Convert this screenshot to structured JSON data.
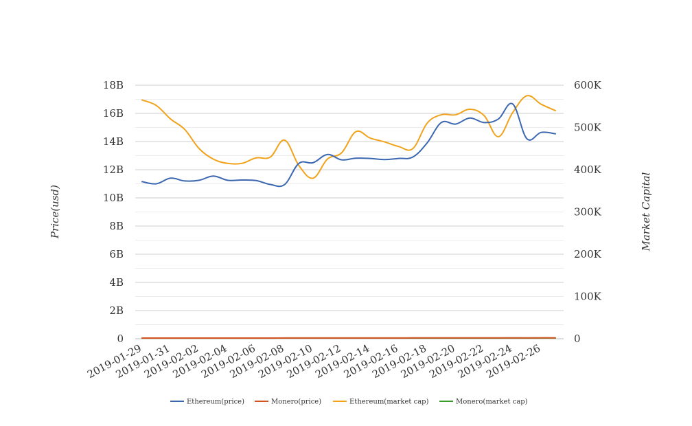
{
  "chart_data": {
    "type": "line",
    "title": "",
    "x": [
      "2019-01-29",
      "2019-01-30",
      "2019-01-31",
      "2019-02-01",
      "2019-02-02",
      "2019-02-03",
      "2019-02-04",
      "2019-02-05",
      "2019-02-06",
      "2019-02-07",
      "2019-02-08",
      "2019-02-09",
      "2019-02-10",
      "2019-02-11",
      "2019-02-12",
      "2019-02-13",
      "2019-02-14",
      "2019-02-15",
      "2019-02-16",
      "2019-02-17",
      "2019-02-18",
      "2019-02-19",
      "2019-02-20",
      "2019-02-21",
      "2019-02-22",
      "2019-02-23",
      "2019-02-24",
      "2019-02-25",
      "2019-02-26",
      "2019-02-27"
    ],
    "x_tick_labels": [
      "2019-01-29",
      "2019-01-31",
      "2019-02-02",
      "2019-02-04",
      "2019-02-06",
      "2019-02-08",
      "2019-02-10",
      "2019-02-12",
      "2019-02-14",
      "2019-02-16",
      "2019-02-18",
      "2019-02-20",
      "2019-02-22",
      "2019-02-24",
      "2019-02-26"
    ],
    "y_left": {
      "label": "Price(usd)",
      "ylim": [
        0,
        18000000000
      ],
      "ticks": [
        0,
        2000000000,
        4000000000,
        6000000000,
        8000000000,
        10000000000,
        12000000000,
        14000000000,
        16000000000,
        18000000000
      ],
      "tick_labels": [
        "0",
        "2B",
        "4B",
        "6B",
        "8B",
        "10B",
        "12B",
        "14B",
        "16B",
        "18B"
      ]
    },
    "y_right": {
      "label": "Market Capital",
      "ylim": [
        0,
        600000
      ],
      "ticks": [
        0,
        100000,
        200000,
        300000,
        400000,
        500000,
        600000
      ],
      "tick_labels": [
        "0",
        "100K",
        "200K",
        "300K",
        "400K",
        "500K",
        "600K"
      ]
    },
    "grid": true,
    "legend_position": "bottom",
    "series": [
      {
        "name": "Ethereum(price)",
        "axis": "left",
        "color": "#3a67b0",
        "values": [
          11150000000,
          11000000000,
          11400000000,
          11200000000,
          11250000000,
          11550000000,
          11250000000,
          11270000000,
          11230000000,
          10950000000,
          10950000000,
          12450000000,
          12500000000,
          13080000000,
          12700000000,
          12820000000,
          12800000000,
          12720000000,
          12800000000,
          12900000000,
          13900000000,
          15350000000,
          15240000000,
          15670000000,
          15350000000,
          15600000000,
          16670000000,
          14200000000,
          14650000000,
          14550000000
        ]
      },
      {
        "name": "Monero(price)",
        "axis": "left",
        "color": "#d4521f",
        "values": [
          50000000,
          48000000,
          47000000,
          47000000,
          48000000,
          49000000,
          48000000,
          49000000,
          50000000,
          51000000,
          52000000,
          53000000,
          54000000,
          55000000,
          56000000,
          57000000,
          57000000,
          56000000,
          57000000,
          58000000,
          59000000,
          60000000,
          61000000,
          62000000,
          62000000,
          63000000,
          64000000,
          63000000,
          64000000,
          64000000
        ]
      },
      {
        "name": "Ethereum(market cap)",
        "axis": "right",
        "color": "#f0a21a",
        "values": [
          565000,
          552000,
          520000,
          495000,
          450000,
          425000,
          415000,
          415000,
          428000,
          430000,
          470000,
          410000,
          380000,
          425000,
          440000,
          490000,
          475000,
          466000,
          455000,
          450000,
          510000,
          530000,
          530000,
          543000,
          528000,
          478000,
          535000,
          575000,
          555000,
          540000
        ]
      },
      {
        "name": "Monero(market cap)",
        "axis": "right",
        "color": "#3a9a2e",
        "values": [
          1500,
          1450,
          1400,
          1420,
          1450,
          1470,
          1460,
          1480,
          1500,
          1520,
          1550,
          1560,
          1570,
          1590,
          1600,
          1620,
          1610,
          1600,
          1620,
          1640,
          1660,
          1680,
          1690,
          1710,
          1700,
          1720,
          1740,
          1730,
          1740,
          1750
        ]
      }
    ]
  }
}
